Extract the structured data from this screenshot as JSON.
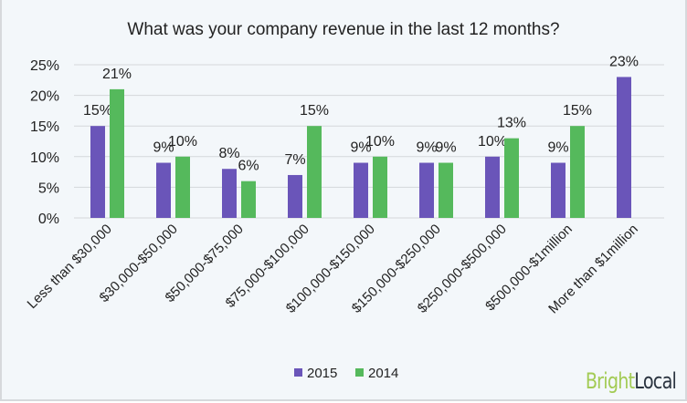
{
  "chart_data": {
    "type": "bar",
    "title": "What was your company revenue in the last 12 months?",
    "categories": [
      "Less than $30,000",
      "$30,000-$50,000",
      "$50,000-$75,000",
      "$75,000-$100,000",
      "$100,000-$150,000",
      "$150,000-$250,000",
      "$250,000-$500,000",
      "$500,000-$1million",
      "More than $1million"
    ],
    "series": [
      {
        "name": "2015",
        "color": "#6a55b9",
        "values": [
          15,
          9,
          8,
          7,
          9,
          9,
          10,
          9,
          23
        ]
      },
      {
        "name": "2014",
        "color": "#55b95c",
        "values": [
          21,
          10,
          6,
          15,
          10,
          9,
          13,
          15,
          null
        ]
      }
    ],
    "yticks": [
      "0%",
      "5%",
      "10%",
      "15%",
      "20%",
      "25%"
    ],
    "ylim": [
      0,
      25
    ],
    "grid": true,
    "legend": "bottom"
  },
  "logo": {
    "part1": "Bright",
    "part2": "Local",
    "color1": "#a3cb55",
    "color2": "#2b3440"
  }
}
